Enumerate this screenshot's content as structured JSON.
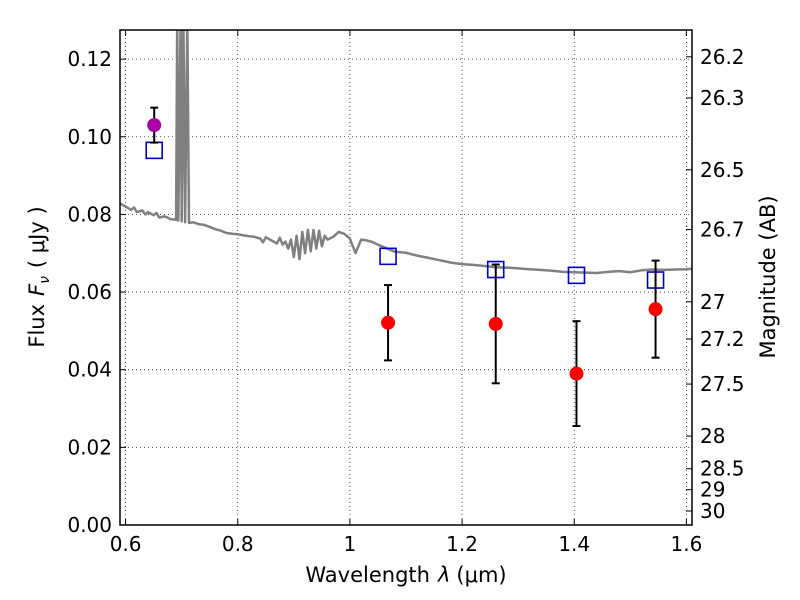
{
  "chart_data": {
    "type": "scatter",
    "xlabel_prefix": "Wavelength",
    "xlabel_symbol": "λ",
    "xlabel_unit": "(μm)",
    "ylabel_prefix": "Flux",
    "ylabel_symbol": "F",
    "ylabel_subscript": "ν",
    "ylabel_unit": "( μJy )",
    "y2label": "Magnitude (AB)",
    "xlim": [
      0.59,
      1.61
    ],
    "ylim": [
      0.0,
      0.1275
    ],
    "xticks": [
      0.6,
      0.8,
      1.0,
      1.2,
      1.4,
      1.6
    ],
    "xtick_labels": [
      "0.6",
      "0.8",
      "1",
      "1.2",
      "1.4",
      "1.6"
    ],
    "yticks": [
      0.0,
      0.02,
      0.04,
      0.06,
      0.08,
      0.1,
      0.12
    ],
    "ytick_labels": [
      "0.00",
      "0.02",
      "0.04",
      "0.06",
      "0.08",
      "0.10",
      "0.12"
    ],
    "y2_ticks": [
      {
        "label": "26.2",
        "flux": 0.1206
      },
      {
        "label": "26.3",
        "flux": 0.11
      },
      {
        "label": "26.5",
        "flux": 0.0915
      },
      {
        "label": "26.7",
        "flux": 0.0761
      },
      {
        "label": "27",
        "flux": 0.0575
      },
      {
        "label": "27.2",
        "flux": 0.0479
      },
      {
        "label": "27.5",
        "flux": 0.0363
      },
      {
        "label": "28",
        "flux": 0.0229
      },
      {
        "label": "28.5",
        "flux": 0.0145
      },
      {
        "label": "29",
        "flux": 0.0091
      },
      {
        "label": "30",
        "flux": 0.0036
      }
    ],
    "grid": true,
    "colors": {
      "observed": "#ff0000",
      "observed_first": "#aa00aa",
      "model": "#0000cc",
      "sed": "#808080",
      "errorbar": "#000000"
    },
    "observed_points": [
      {
        "x": 0.651,
        "y": 0.103,
        "yerr_low": 0.0045,
        "yerr_high": 0.0045,
        "color": "#aa00aa"
      },
      {
        "x": 1.068,
        "y": 0.0521,
        "yerr_low": 0.0097,
        "yerr_high": 0.0097,
        "color": "#ff0000"
      },
      {
        "x": 1.26,
        "y": 0.0518,
        "yerr_low": 0.0153,
        "yerr_high": 0.0153,
        "color": "#ff0000"
      },
      {
        "x": 1.404,
        "y": 0.039,
        "yerr_low": 0.0135,
        "yerr_high": 0.0135,
        "color": "#ff0000"
      },
      {
        "x": 1.545,
        "y": 0.0556,
        "yerr_low": 0.0125,
        "yerr_high": 0.0125,
        "color": "#ff0000"
      }
    ],
    "model_points": [
      {
        "x": 0.651,
        "y": 0.0965
      },
      {
        "x": 1.068,
        "y": 0.0692
      },
      {
        "x": 1.26,
        "y": 0.0658
      },
      {
        "x": 1.404,
        "y": 0.0643
      },
      {
        "x": 1.545,
        "y": 0.0631
      }
    ],
    "sed_line": [
      [
        0.59,
        0.0828
      ],
      [
        0.6,
        0.082
      ],
      [
        0.61,
        0.0812
      ],
      [
        0.615,
        0.0818
      ],
      [
        0.62,
        0.0806
      ],
      [
        0.63,
        0.081
      ],
      [
        0.635,
        0.08
      ],
      [
        0.64,
        0.0806
      ],
      [
        0.65,
        0.0798
      ],
      [
        0.655,
        0.0804
      ],
      [
        0.66,
        0.0792
      ],
      [
        0.67,
        0.0795
      ],
      [
        0.68,
        0.0788
      ],
      [
        0.69,
        0.0786
      ],
      [
        0.692,
        0.13
      ],
      [
        0.694,
        0.0784
      ],
      [
        0.698,
        0.13
      ],
      [
        0.7,
        0.0782
      ],
      [
        0.703,
        0.13
      ],
      [
        0.706,
        0.078
      ],
      [
        0.71,
        0.13
      ],
      [
        0.713,
        0.0778
      ],
      [
        0.72,
        0.078
      ],
      [
        0.73,
        0.0775
      ],
      [
        0.74,
        0.0773
      ],
      [
        0.75,
        0.0768
      ],
      [
        0.76,
        0.0762
      ],
      [
        0.77,
        0.0758
      ],
      [
        0.78,
        0.0752
      ],
      [
        0.79,
        0.075
      ],
      [
        0.8,
        0.0749
      ],
      [
        0.81,
        0.0746
      ],
      [
        0.82,
        0.0744
      ],
      [
        0.83,
        0.0742
      ],
      [
        0.84,
        0.0738
      ],
      [
        0.845,
        0.0728
      ],
      [
        0.85,
        0.0741
      ],
      [
        0.86,
        0.0733
      ],
      [
        0.87,
        0.0725
      ],
      [
        0.875,
        0.074
      ],
      [
        0.88,
        0.0722
      ],
      [
        0.885,
        0.073
      ],
      [
        0.89,
        0.0712
      ],
      [
        0.895,
        0.0735
      ],
      [
        0.9,
        0.069
      ],
      [
        0.905,
        0.0745
      ],
      [
        0.91,
        0.0685
      ],
      [
        0.915,
        0.0755
      ],
      [
        0.92,
        0.07
      ],
      [
        0.925,
        0.076
      ],
      [
        0.93,
        0.0705
      ],
      [
        0.935,
        0.076
      ],
      [
        0.94,
        0.0712
      ],
      [
        0.945,
        0.0758
      ],
      [
        0.95,
        0.0718
      ],
      [
        0.955,
        0.0745
      ],
      [
        0.96,
        0.0735
      ],
      [
        0.97,
        0.0742
      ],
      [
        0.98,
        0.0755
      ],
      [
        0.99,
        0.075
      ],
      [
        1.0,
        0.0738
      ],
      [
        1.01,
        0.07
      ],
      [
        1.02,
        0.0735
      ],
      [
        1.03,
        0.0733
      ],
      [
        1.04,
        0.0729
      ],
      [
        1.05,
        0.0722
      ],
      [
        1.06,
        0.0716
      ],
      [
        1.07,
        0.071
      ],
      [
        1.08,
        0.0704
      ],
      [
        1.1,
        0.0701
      ],
      [
        1.12,
        0.0694
      ],
      [
        1.14,
        0.0688
      ],
      [
        1.16,
        0.0682
      ],
      [
        1.18,
        0.0676
      ],
      [
        1.2,
        0.0672
      ],
      [
        1.22,
        0.067
      ],
      [
        1.24,
        0.0667
      ],
      [
        1.26,
        0.0664
      ],
      [
        1.28,
        0.0663
      ],
      [
        1.3,
        0.0661
      ],
      [
        1.32,
        0.0659
      ],
      [
        1.34,
        0.0657
      ],
      [
        1.36,
        0.0655
      ],
      [
        1.38,
        0.0652
      ],
      [
        1.4,
        0.0651
      ],
      [
        1.42,
        0.065
      ],
      [
        1.44,
        0.0649
      ],
      [
        1.46,
        0.0652
      ],
      [
        1.48,
        0.0654
      ],
      [
        1.5,
        0.0651
      ],
      [
        1.52,
        0.0656
      ],
      [
        1.54,
        0.0658
      ],
      [
        1.56,
        0.0657
      ],
      [
        1.58,
        0.0658
      ],
      [
        1.6,
        0.0659
      ],
      [
        1.61,
        0.066
      ]
    ]
  }
}
